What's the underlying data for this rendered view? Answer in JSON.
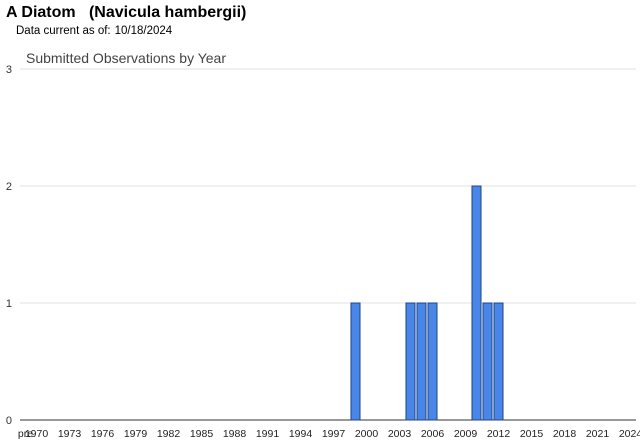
{
  "header": {
    "title": "A Diatom   (Navicula hambergii)",
    "date_prefix": "Data current as of:",
    "date_value": "10/18/2024"
  },
  "chart_data": {
    "type": "bar",
    "title": "Submitted Observations by Year",
    "xlabel": "",
    "ylabel": "",
    "ylim": [
      0,
      3
    ],
    "yticks": [
      0,
      1,
      2,
      3
    ],
    "grid": true,
    "x_tick_labels": [
      "pre",
      "1970",
      "1973",
      "1976",
      "1979",
      "1982",
      "1985",
      "1988",
      "1991",
      "1994",
      "1997",
      "2000",
      "2003",
      "2006",
      "2009",
      "2012",
      "2015",
      "2018",
      "2021",
      "2024"
    ],
    "categories": [
      "pre",
      "1970",
      "1971",
      "1972",
      "1973",
      "1974",
      "1975",
      "1976",
      "1977",
      "1978",
      "1979",
      "1980",
      "1981",
      "1982",
      "1983",
      "1984",
      "1985",
      "1986",
      "1987",
      "1988",
      "1989",
      "1990",
      "1991",
      "1992",
      "1993",
      "1994",
      "1995",
      "1996",
      "1997",
      "1998",
      "1999",
      "2000",
      "2001",
      "2002",
      "2003",
      "2004",
      "2005",
      "2006",
      "2007",
      "2008",
      "2009",
      "2010",
      "2011",
      "2012",
      "2013",
      "2014",
      "2015",
      "2016",
      "2017",
      "2018",
      "2019",
      "2020",
      "2021",
      "2022",
      "2023",
      "2024"
    ],
    "values": [
      0,
      0,
      0,
      0,
      0,
      0,
      0,
      0,
      0,
      0,
      0,
      0,
      0,
      0,
      0,
      0,
      0,
      0,
      0,
      0,
      0,
      0,
      0,
      0,
      0,
      0,
      0,
      0,
      0,
      0,
      1,
      0,
      0,
      0,
      0,
      1,
      1,
      1,
      0,
      0,
      0,
      2,
      1,
      1,
      0,
      0,
      0,
      0,
      0,
      0,
      0,
      0,
      0,
      0,
      0,
      0
    ],
    "colors": {
      "bar_fill": "#4a86e8",
      "bar_stroke": "#1c4587",
      "grid": "#e0e0e0",
      "axis": "#333333"
    }
  }
}
